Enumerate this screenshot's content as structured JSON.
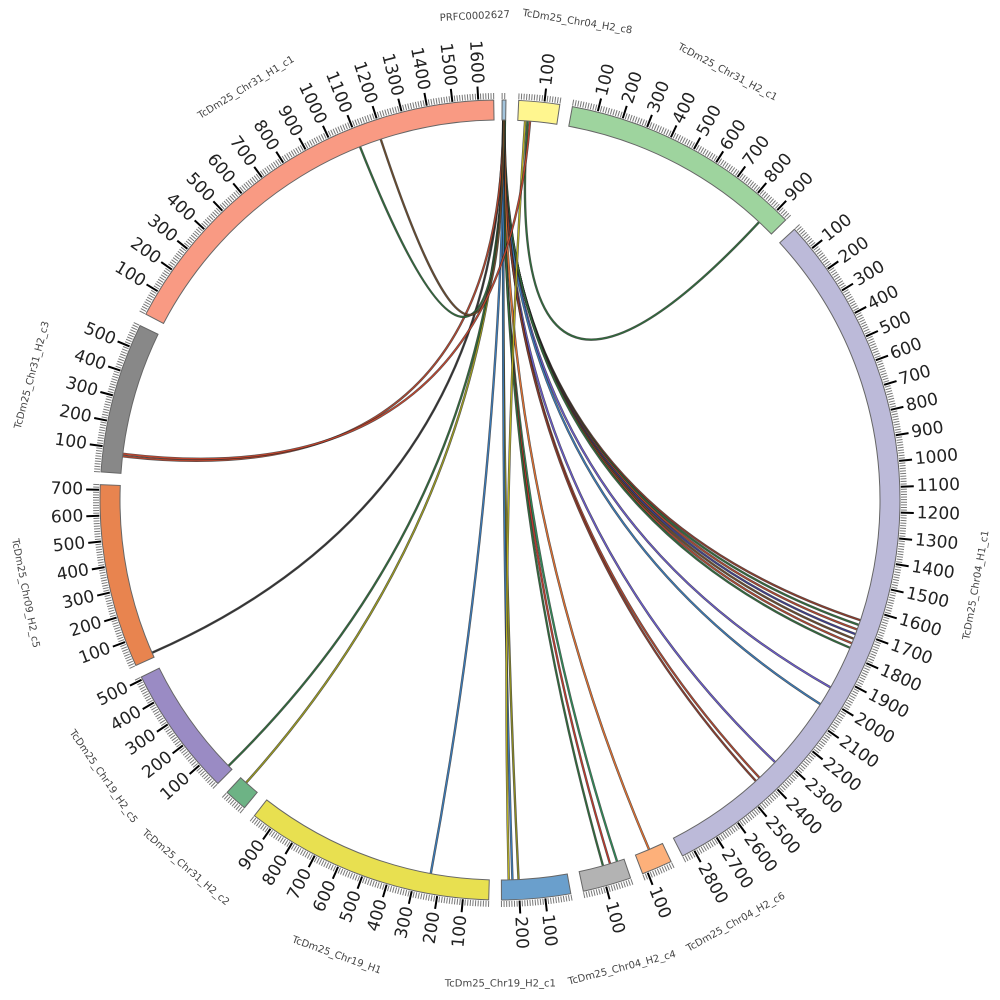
{
  "chart_data": {
    "type": "chord",
    "tick_step": 100,
    "minor_tick_step": 10,
    "segments": [
      {
        "id": "PRFC",
        "label": "PRFC0002627",
        "length": 15,
        "color": "#a3c4dc"
      },
      {
        "id": "c8",
        "label": "TcDm25_Chr04_H2_c8",
        "length": 160,
        "color": "#fff68f"
      },
      {
        "id": "g1",
        "label": "TcDm25_Chr31_H2_c1",
        "length": 950,
        "color": "#9ed49e"
      },
      {
        "id": "lav",
        "label": "TcDm25_Chr04_H1_c1",
        "length": 2850,
        "color": "#bcbad9"
      },
      {
        "id": "c6",
        "label": "TcDm25_Chr04_H2_c6",
        "length": 120,
        "color": "#fdb07a"
      },
      {
        "id": "c4",
        "label": "TcDm25_Chr04_H2_c4",
        "length": 190,
        "color": "#b3b3b3"
      },
      {
        "id": "b1",
        "label": "TcDm25_Chr19_H2_c1",
        "length": 270,
        "color": "#6a9fcc"
      },
      {
        "id": "h19",
        "label": "TcDm25_Chr19_H1",
        "length": 980,
        "color": "#e8e050"
      },
      {
        "id": "g2",
        "label": "TcDm25_Chr31_H2_c2",
        "length": 90,
        "color": "#6db385"
      },
      {
        "id": "p5",
        "label": "TcDm25_Chr19_H2_c5",
        "length": 510,
        "color": "#9a8bc4"
      },
      {
        "id": "o5",
        "label": "TcDm25_Chr09_H2_c5",
        "length": 720,
        "color": "#e8844f"
      },
      {
        "id": "gr3",
        "label": "TcDm25_Chr31_H2_c3",
        "length": 590,
        "color": "#888888"
      },
      {
        "id": "sal",
        "label": "TcDm25_Chr31_H1_c1",
        "length": 1660,
        "color": "#f99a83"
      }
    ],
    "links": [
      {
        "from": [
          "PRFC",
          5
        ],
        "to": [
          "lav",
          1650
        ],
        "color": "#8c3a2a"
      },
      {
        "from": [
          "PRFC",
          6
        ],
        "to": [
          "lav",
          1670
        ],
        "color": "#2e6b3a"
      },
      {
        "from": [
          "PRFC",
          7
        ],
        "to": [
          "lav",
          1690
        ],
        "color": "#b0452e"
      },
      {
        "from": [
          "PRFC",
          8
        ],
        "to": [
          "lav",
          1710
        ],
        "color": "#3d3d8c"
      },
      {
        "from": [
          "PRFC",
          9
        ],
        "to": [
          "lav",
          1730
        ],
        "color": "#6b4a2a"
      },
      {
        "from": [
          "PRFC",
          10
        ],
        "to": [
          "lav",
          1750
        ],
        "color": "#b0452e"
      },
      {
        "from": [
          "PRFC",
          11
        ],
        "to": [
          "lav",
          1770
        ],
        "color": "#2e6b3a"
      },
      {
        "from": [
          "PRFC",
          6
        ],
        "to": [
          "lav",
          1950
        ],
        "color": "#6a5acd"
      },
      {
        "from": [
          "PRFC",
          7
        ],
        "to": [
          "lav",
          2030
        ],
        "color": "#3a7ab8"
      },
      {
        "from": [
          "PRFC",
          8
        ],
        "to": [
          "lav",
          2330
        ],
        "color": "#6a5acd"
      },
      {
        "from": [
          "PRFC",
          9
        ],
        "to": [
          "lav",
          2420
        ],
        "color": "#b0452e"
      },
      {
        "from": [
          "PRFC",
          10
        ],
        "to": [
          "lav",
          2440
        ],
        "color": "#8c3a2a"
      },
      {
        "from": [
          "PRFC",
          11
        ],
        "to": [
          "c6",
          60
        ],
        "color": "#e07030"
      },
      {
        "from": [
          "PRFC",
          5
        ],
        "to": [
          "c4",
          30
        ],
        "color": "#2e8b57"
      },
      {
        "from": [
          "PRFC",
          6
        ],
        "to": [
          "c4",
          60
        ],
        "color": "#c0392b"
      },
      {
        "from": [
          "PRFC",
          7
        ],
        "to": [
          "c4",
          90
        ],
        "color": "#2e6b3a"
      },
      {
        "from": [
          "PRFC",
          8
        ],
        "to": [
          "b1",
          200
        ],
        "color": "#8a8a20"
      },
      {
        "from": [
          "PRFC",
          9
        ],
        "to": [
          "b1",
          225
        ],
        "color": "#3a7ab8"
      },
      {
        "from": [
          "PRFC",
          10
        ],
        "to": [
          "h19",
          240
        ],
        "color": "#3a7ab8"
      },
      {
        "from": [
          "PRFC",
          11
        ],
        "to": [
          "g2",
          60
        ],
        "color": "#9a9a20"
      },
      {
        "from": [
          "PRFC",
          12
        ],
        "to": [
          "p5",
          20
        ],
        "color": "#2e6b3a"
      },
      {
        "from": [
          "PRFC",
          5
        ],
        "to": [
          "o5",
          20
        ],
        "color": "#333333"
      },
      {
        "from": [
          "PRFC",
          6
        ],
        "to": [
          "gr3",
          70
        ],
        "color": "#b0452e"
      },
      {
        "from": [
          "PRFC",
          7
        ],
        "to": [
          "sal",
          1100
        ],
        "color": "#2e6b3a"
      },
      {
        "from": [
          "PRFC",
          8
        ],
        "to": [
          "sal",
          1190
        ],
        "color": "#6b4a2a"
      },
      {
        "from": [
          "c8",
          40
        ],
        "to": [
          "g1",
          880
        ],
        "color": "#2e6b3a"
      },
      {
        "from": [
          "c8",
          30
        ],
        "to": [
          "b1",
          240
        ],
        "color": "#b8b020"
      },
      {
        "from": [
          "c8",
          50
        ],
        "to": [
          "gr3",
          80
        ],
        "color": "#c0452e"
      }
    ]
  }
}
